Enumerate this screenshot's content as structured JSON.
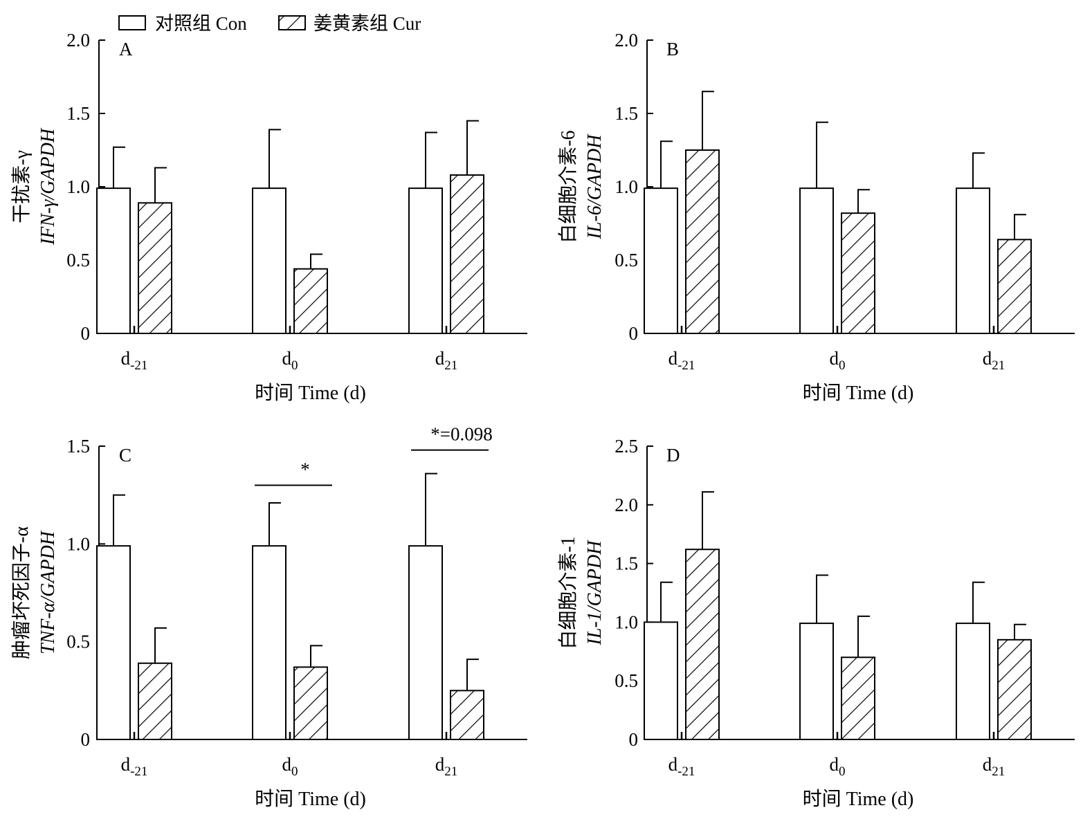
{
  "legend": {
    "control_label": "对照组 Con",
    "treatment_label": "姜黄素组 Cur",
    "placement": "top-left"
  },
  "chart_data": [
    {
      "type": "bar",
      "panel": "A",
      "ylabel_cn": "干扰素-γ",
      "ylabel_en": "IFN-γ/GAPDH",
      "xlabel": "时间 Time (d)",
      "categories": [
        {
          "base": "d",
          "sub": "-21"
        },
        {
          "base": "d",
          "sub": "0"
        },
        {
          "base": "d",
          "sub": "21"
        }
      ],
      "ylim": [
        0,
        2.0
      ],
      "yticks": [
        0,
        0.5,
        1.0,
        1.5,
        2.0
      ],
      "yticklabels": [
        "0",
        "0.5",
        "1.0",
        "1.5",
        "2.0"
      ],
      "series": [
        {
          "name": "对照组 Con",
          "values": [
            0.99,
            0.99,
            0.99
          ],
          "errors": [
            0.28,
            0.4,
            0.38
          ]
        },
        {
          "name": "姜黄素组 Cur",
          "values": [
            0.89,
            0.44,
            1.08
          ],
          "errors": [
            0.24,
            0.1,
            0.37
          ]
        }
      ],
      "annotations": []
    },
    {
      "type": "bar",
      "panel": "B",
      "ylabel_cn": "白细胞介素-6",
      "ylabel_en": "IL-6/GAPDH",
      "xlabel": "时间 Time (d)",
      "categories": [
        {
          "base": "d",
          "sub": "-21"
        },
        {
          "base": "d",
          "sub": "0"
        },
        {
          "base": "d",
          "sub": "21"
        }
      ],
      "ylim": [
        0,
        2.0
      ],
      "yticks": [
        0,
        0.5,
        1.0,
        1.5,
        2.0
      ],
      "yticklabels": [
        "0",
        "0.5",
        "1.0",
        "1.5",
        "2.0"
      ],
      "series": [
        {
          "name": "对照组 Con",
          "values": [
            0.99,
            0.99,
            0.99
          ],
          "errors": [
            0.32,
            0.45,
            0.24
          ]
        },
        {
          "name": "姜黄素组 Cur",
          "values": [
            1.25,
            0.82,
            0.64
          ],
          "errors": [
            0.4,
            0.16,
            0.17
          ]
        }
      ],
      "annotations": []
    },
    {
      "type": "bar",
      "panel": "C",
      "ylabel_cn": "肿瘤坏死因子-α",
      "ylabel_en": "TNF-α/GAPDH",
      "xlabel": "时间 Time (d)",
      "categories": [
        {
          "base": "d",
          "sub": "-21"
        },
        {
          "base": "d",
          "sub": "0"
        },
        {
          "base": "d",
          "sub": "21"
        }
      ],
      "ylim": [
        0,
        1.5
      ],
      "yticks": [
        0,
        0.5,
        1.0,
        1.5
      ],
      "yticklabels": [
        "0",
        "0.5",
        "1.0",
        "1.5"
      ],
      "series": [
        {
          "name": "对照组 Con",
          "values": [
            0.99,
            0.99,
            0.99
          ],
          "errors": [
            0.26,
            0.22,
            0.37
          ]
        },
        {
          "name": "姜黄素组 Cur",
          "values": [
            0.39,
            0.37,
            0.25
          ],
          "errors": [
            0.18,
            0.11,
            0.16
          ]
        }
      ],
      "annotations": [
        {
          "category": 1,
          "text": "*",
          "level": 1.3
        },
        {
          "category": 2,
          "text": "*=0.098",
          "level": 1.48
        }
      ]
    },
    {
      "type": "bar",
      "panel": "D",
      "ylabel_cn": "白细胞介素-1",
      "ylabel_en": "IL-1/GAPDH",
      "xlabel": "时间 Time (d)",
      "categories": [
        {
          "base": "d",
          "sub": "-21"
        },
        {
          "base": "d",
          "sub": "0"
        },
        {
          "base": "d",
          "sub": "21"
        }
      ],
      "ylim": [
        0,
        2.5
      ],
      "yticks": [
        0,
        0.5,
        1.0,
        1.5,
        2.0,
        2.5
      ],
      "yticklabels": [
        "0",
        "0.5",
        "1.0",
        "1.5",
        "2.0",
        "2.5"
      ],
      "series": [
        {
          "name": "对照组 Con",
          "values": [
            1.0,
            0.99,
            0.99
          ],
          "errors": [
            0.34,
            0.41,
            0.35
          ]
        },
        {
          "name": "姜黄素组 Cur",
          "values": [
            1.62,
            0.7,
            0.85
          ],
          "errors": [
            0.49,
            0.35,
            0.13
          ]
        }
      ],
      "annotations": []
    }
  ]
}
